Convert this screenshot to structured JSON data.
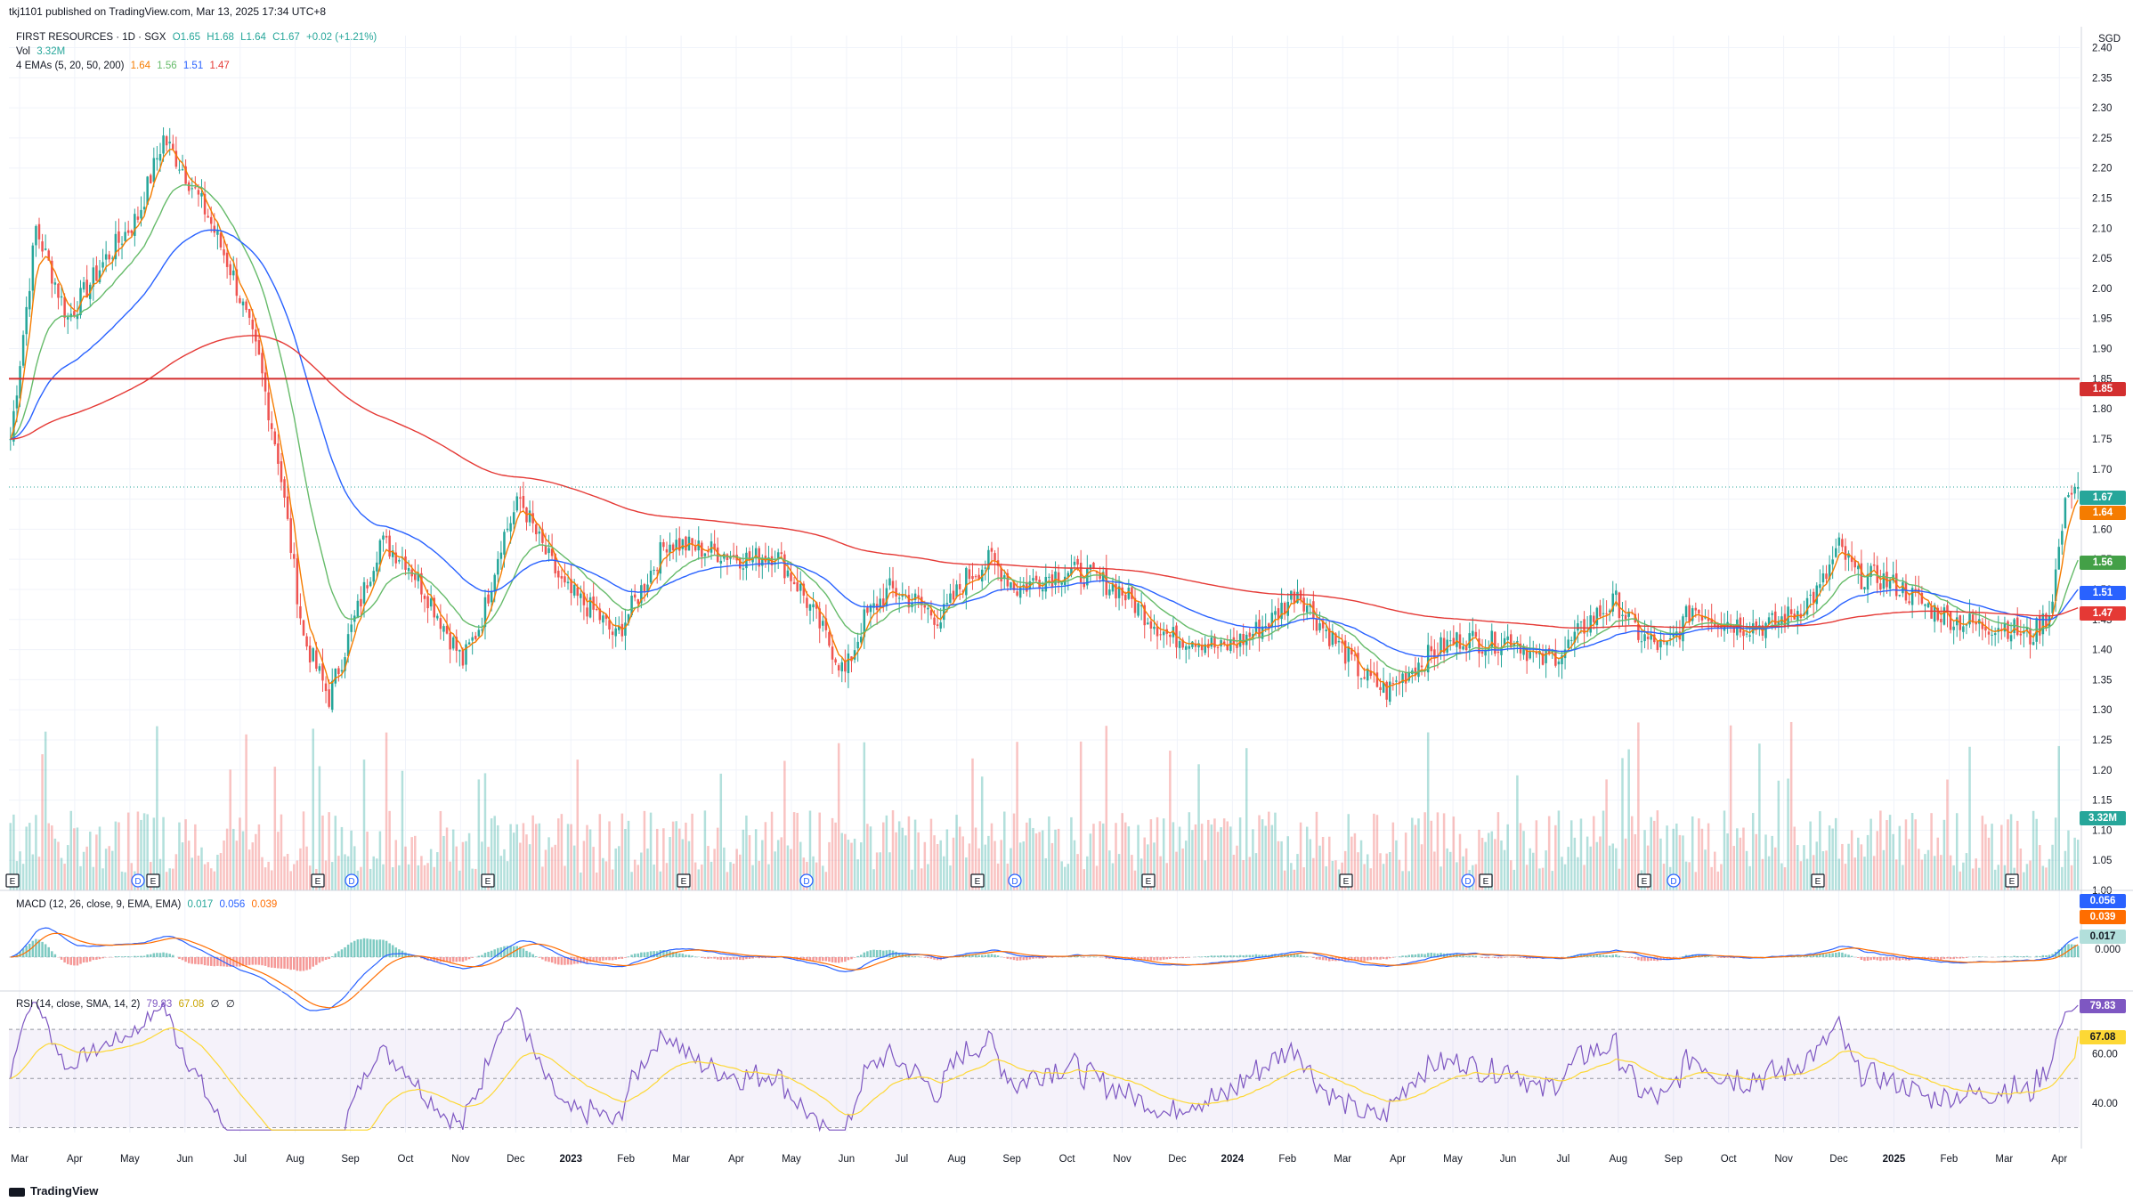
{
  "credit": "tkj1101 published on TradingView.com, Mar 13, 2025 17:34 UTC+8",
  "legend": {
    "symbol_line": "FIRST RESOURCES · 1D · SGX",
    "ohlc": {
      "o": "O1.65",
      "h": "H1.68",
      "l": "L1.64",
      "c": "C1.67",
      "chg": "+0.02 (+1.21%)"
    },
    "vol_label": "Vol",
    "vol_value": "3.32M",
    "ema_label": "4 EMAs (5, 20, 50, 200)",
    "ema_values": [
      "1.64",
      "1.56",
      "1.51",
      "1.47"
    ]
  },
  "macd_legend": {
    "label": "MACD (12, 26, close, 9, EMA, EMA)",
    "values": [
      "0.017",
      "0.056",
      "0.039"
    ]
  },
  "rsi_legend": {
    "label": "RSI (14, close, SMA, 14, 2)",
    "values": [
      "79.83",
      "67.08",
      "∅",
      "∅"
    ]
  },
  "currency": "SGD",
  "footer": "TradingView",
  "colors": {
    "up": "#26a69a",
    "down": "#ef5350",
    "ema5": "#f57c00",
    "ema20": "#66bb6a",
    "ema50": "#2962ff",
    "ema200": "#e53935",
    "hline": "#d32f2f",
    "macd": "#2962ff",
    "signal": "#ff6d00",
    "rsi": "#7e57c2",
    "rsi_ma": "#fdd835"
  },
  "tags": {
    "hline": "1.85",
    "last": "1.67",
    "ema5": "1.64",
    "ema20": "1.56",
    "ema50": "1.51",
    "ema200": "1.47",
    "volume": "3.32M",
    "macd_line": "0.056",
    "signal_line": "0.039",
    "hist": "0.017",
    "macd_zero": "0.000",
    "rsi": "79.83",
    "rsi_ma": "67.08"
  },
  "chart_data": [
    {
      "type": "candlestick",
      "title": "FIRST RESOURCES · 1D · SGX",
      "currency": "SGD",
      "y_ticks": [
        "2.40",
        "2.35",
        "2.30",
        "2.25",
        "2.20",
        "2.15",
        "2.10",
        "2.05",
        "2.00",
        "1.95",
        "1.90",
        "1.85",
        "1.80",
        "1.75",
        "1.70",
        "1.65",
        "1.60",
        "1.55",
        "1.50",
        "1.45",
        "1.40",
        "1.35",
        "1.30",
        "1.25",
        "1.20",
        "1.15",
        "1.10",
        "1.05",
        "1.00"
      ],
      "ylim": [
        1.0,
        2.42
      ],
      "x_ticks": [
        "Mar",
        "Apr",
        "May",
        "Jun",
        "Jul",
        "Aug",
        "Sep",
        "Oct",
        "Nov",
        "Dec",
        "2023",
        "Feb",
        "Mar",
        "Apr",
        "May",
        "Jun",
        "Jul",
        "Aug",
        "Sep",
        "Oct",
        "Nov",
        "Dec",
        "2024",
        "Feb",
        "Mar",
        "Apr",
        "May",
        "Jun",
        "Jul",
        "Aug",
        "Sep",
        "Oct",
        "Nov",
        "Dec",
        "2025",
        "Feb",
        "Mar",
        "Apr"
      ],
      "horizontal_line": 1.85,
      "last_price": 1.67,
      "close_keypoints": [
        [
          0,
          1.75
        ],
        [
          8,
          2.1
        ],
        [
          18,
          1.95
        ],
        [
          30,
          2.05
        ],
        [
          40,
          2.12
        ],
        [
          48,
          2.25
        ],
        [
          54,
          2.2
        ],
        [
          62,
          2.12
        ],
        [
          70,
          2.02
        ],
        [
          78,
          1.88
        ],
        [
          84,
          1.72
        ],
        [
          92,
          1.42
        ],
        [
          100,
          1.32
        ],
        [
          108,
          1.45
        ],
        [
          116,
          1.58
        ],
        [
          124,
          1.55
        ],
        [
          132,
          1.48
        ],
        [
          142,
          1.38
        ],
        [
          148,
          1.45
        ],
        [
          154,
          1.58
        ],
        [
          160,
          1.65
        ],
        [
          166,
          1.58
        ],
        [
          174,
          1.5
        ],
        [
          184,
          1.46
        ],
        [
          190,
          1.42
        ],
        [
          198,
          1.5
        ],
        [
          206,
          1.58
        ],
        [
          214,
          1.57
        ],
        [
          224,
          1.56
        ],
        [
          232,
          1.55
        ],
        [
          240,
          1.56
        ],
        [
          248,
          1.5
        ],
        [
          256,
          1.42
        ],
        [
          262,
          1.36
        ],
        [
          268,
          1.45
        ],
        [
          276,
          1.5
        ],
        [
          284,
          1.48
        ],
        [
          292,
          1.45
        ],
        [
          300,
          1.52
        ],
        [
          308,
          1.55
        ],
        [
          316,
          1.5
        ],
        [
          324,
          1.52
        ],
        [
          332,
          1.53
        ],
        [
          340,
          1.52
        ],
        [
          348,
          1.5
        ],
        [
          356,
          1.46
        ],
        [
          364,
          1.42
        ],
        [
          372,
          1.42
        ],
        [
          380,
          1.4
        ],
        [
          388,
          1.42
        ],
        [
          396,
          1.45
        ],
        [
          404,
          1.5
        ],
        [
          410,
          1.45
        ],
        [
          418,
          1.4
        ],
        [
          424,
          1.36
        ],
        [
          432,
          1.33
        ],
        [
          440,
          1.37
        ],
        [
          448,
          1.4
        ],
        [
          456,
          1.42
        ],
        [
          464,
          1.41
        ],
        [
          472,
          1.42
        ],
        [
          480,
          1.38
        ],
        [
          488,
          1.4
        ],
        [
          496,
          1.45
        ],
        [
          504,
          1.48
        ],
        [
          512,
          1.42
        ],
        [
          520,
          1.4
        ],
        [
          528,
          1.47
        ],
        [
          536,
          1.45
        ],
        [
          544,
          1.44
        ],
        [
          552,
          1.44
        ],
        [
          560,
          1.46
        ],
        [
          568,
          1.5
        ],
        [
          574,
          1.57
        ],
        [
          580,
          1.52
        ],
        [
          586,
          1.52
        ],
        [
          594,
          1.5
        ],
        [
          602,
          1.47
        ],
        [
          610,
          1.45
        ],
        [
          618,
          1.44
        ],
        [
          626,
          1.44
        ],
        [
          634,
          1.42
        ],
        [
          640,
          1.46
        ],
        [
          646,
          1.67
        ]
      ],
      "emas": {
        "periods": [
          5,
          20,
          50,
          200
        ],
        "last": [
          1.64,
          1.56,
          1.51,
          1.47
        ]
      },
      "volume_last": "3.32M"
    },
    {
      "type": "line",
      "title": "MACD (12, 26, close, 9, EMA, EMA)",
      "series": [
        {
          "name": "MACD",
          "last": 0.056
        },
        {
          "name": "Signal",
          "last": 0.039
        },
        {
          "name": "Histogram",
          "last": 0.017
        }
      ],
      "zero": "0.000"
    },
    {
      "type": "line",
      "title": "RSI (14, close, SMA, 14, 2)",
      "y_ticks": [
        "60.00",
        "40.00"
      ],
      "ylim": [
        28,
        82
      ],
      "bands": [
        30,
        50,
        70
      ],
      "series": [
        {
          "name": "RSI",
          "last": 79.83
        },
        {
          "name": "RSI MA",
          "last": 67.08
        }
      ]
    }
  ]
}
